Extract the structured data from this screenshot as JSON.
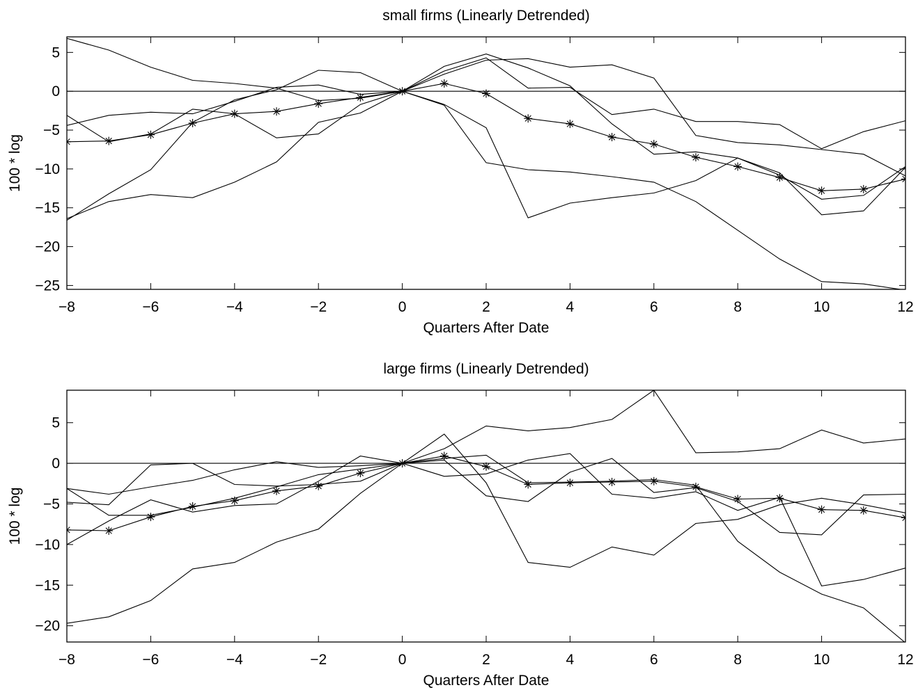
{
  "chart_data": [
    {
      "type": "line",
      "title": "small firms (Linearly Detrended)",
      "xlabel": "Quarters After Date",
      "ylabel": "100 * log",
      "xlim": [
        -8,
        12
      ],
      "ylim": [
        -25.5,
        7
      ],
      "xticks": [
        -8,
        -6,
        -4,
        -2,
        0,
        2,
        4,
        6,
        8,
        10,
        12
      ],
      "yticks": [
        -25,
        -20,
        -15,
        -10,
        -5,
        0,
        5
      ],
      "x": [
        -8,
        -7,
        -6,
        -5,
        -4,
        -3,
        -2,
        -1,
        0,
        1,
        2,
        3,
        4,
        5,
        6,
        7,
        8,
        9,
        10,
        11,
        12
      ],
      "reference_line": 0,
      "grid": false,
      "series": [
        {
          "marker": "none",
          "values": [
            6.8,
            5.3,
            3.1,
            1.4,
            1.0,
            0.4,
            -1.2,
            -0.9,
            0,
            3.2,
            4.8,
            3.0,
            0.7,
            -4.2,
            -8.1,
            -7.8,
            -8.6,
            -10.8,
            -13.9,
            -13.4,
            -9.7
          ]
        },
        {
          "marker": "none",
          "values": [
            -4.4,
            -3.1,
            -2.7,
            -2.9,
            -1.3,
            0.5,
            0.8,
            -0.4,
            0,
            2.6,
            4.3,
            0.4,
            0.5,
            -3.0,
            -2.3,
            -3.9,
            -3.9,
            -4.3,
            -7.4,
            -5.2,
            -3.8
          ]
        },
        {
          "marker": "none",
          "values": [
            -16.6,
            -13.2,
            -10.1,
            -4.0,
            -1.1,
            0.2,
            2.7,
            2.4,
            0,
            2.2,
            4.0,
            4.2,
            3.1,
            3.4,
            1.7,
            -5.7,
            -6.6,
            -6.9,
            -7.5,
            -8.1,
            -10.9
          ]
        },
        {
          "marker": "none",
          "values": [
            -3.1,
            -6.5,
            -5.5,
            -2.3,
            -2.9,
            -6.0,
            -5.5,
            -1.7,
            0,
            -1.7,
            -4.7,
            -16.3,
            -14.4,
            -13.7,
            -13.1,
            -11.5,
            -8.6,
            -10.5,
            -15.9,
            -15.4,
            -9.8
          ]
        },
        {
          "marker": "none",
          "values": [
            -16.4,
            -14.2,
            -13.3,
            -13.7,
            -11.7,
            -9.1,
            -4.0,
            -2.8,
            0,
            -1.8,
            -9.2,
            -10.1,
            -10.4,
            -11.0,
            -11.7,
            -14.2,
            -17.9,
            -21.6,
            -24.5,
            -24.8,
            -25.6
          ]
        },
        {
          "marker": "star",
          "values": [
            -6.5,
            -6.4,
            -5.6,
            -4.1,
            -2.9,
            -2.6,
            -1.6,
            -0.8,
            0,
            1.0,
            -0.3,
            -3.5,
            -4.2,
            -5.9,
            -6.8,
            -8.5,
            -9.7,
            -11.1,
            -12.8,
            -12.6,
            -11.3
          ]
        }
      ]
    },
    {
      "type": "line",
      "title": "large firms (Linearly Detrended)",
      "xlabel": "Quarters After Date",
      "ylabel": "100 * log",
      "xlim": [
        -8,
        12
      ],
      "ylim": [
        -22,
        9
      ],
      "xticks": [
        -8,
        -6,
        -4,
        -2,
        0,
        2,
        4,
        6,
        8,
        10,
        12
      ],
      "yticks": [
        -20,
        -15,
        -10,
        -5,
        0,
        5
      ],
      "x": [
        -8,
        -7,
        -6,
        -5,
        -4,
        -3,
        -2,
        -1,
        0,
        1,
        2,
        3,
        4,
        5,
        6,
        7,
        8,
        9,
        10,
        11,
        12
      ],
      "reference_line": 0,
      "grid": false,
      "series": [
        {
          "marker": "none",
          "values": [
            -3.1,
            -3.8,
            -2.9,
            -2.1,
            -0.8,
            0.2,
            -0.5,
            -0.3,
            0,
            3.6,
            -2.4,
            -12.2,
            -12.8,
            -10.3,
            -11.3,
            -7.4,
            -6.9,
            -5.1,
            -4.3,
            -5.1,
            -6.1
          ]
        },
        {
          "marker": "none",
          "values": [
            -4.8,
            -5.1,
            -0.2,
            0.0,
            -2.6,
            -2.8,
            -2.6,
            -2.2,
            0,
            1.8,
            4.6,
            4.0,
            4.4,
            5.4,
            9.0,
            1.3,
            1.4,
            1.8,
            4.1,
            2.5,
            3.0
          ]
        },
        {
          "marker": "none",
          "values": [
            -10.0,
            -7.1,
            -4.5,
            -6.0,
            -5.2,
            -5.0,
            -2.2,
            0.9,
            0,
            0.6,
            1.0,
            -2.4,
            -2.3,
            -2.2,
            -2.0,
            -2.7,
            -9.6,
            -13.4,
            -16.1,
            -17.8,
            -22.1
          ]
        },
        {
          "marker": "none",
          "values": [
            -3.1,
            -6.4,
            -6.4,
            -5.4,
            -4.3,
            -2.9,
            -1.4,
            -0.7,
            0,
            -1.6,
            -1.3,
            0.4,
            1.2,
            -3.8,
            -4.3,
            -3.5,
            -5.8,
            -4.2,
            -15.1,
            -14.3,
            -12.9
          ]
        },
        {
          "marker": "none",
          "values": [
            -19.7,
            -18.9,
            -16.9,
            -13.0,
            -12.2,
            -9.7,
            -8.1,
            -3.7,
            0,
            0.4,
            -4.0,
            -4.7,
            -1.1,
            0.6,
            -3.6,
            -3.0,
            -4.7,
            -8.5,
            -8.8,
            -3.9,
            -3.8
          ]
        },
        {
          "marker": "star",
          "values": [
            -8.2,
            -8.3,
            -6.6,
            -5.3,
            -4.6,
            -3.4,
            -2.8,
            -1.2,
            0,
            0.9,
            -0.4,
            -2.6,
            -2.4,
            -2.3,
            -2.2,
            -2.9,
            -4.4,
            -4.3,
            -5.7,
            -5.8,
            -6.7
          ]
        }
      ]
    }
  ]
}
